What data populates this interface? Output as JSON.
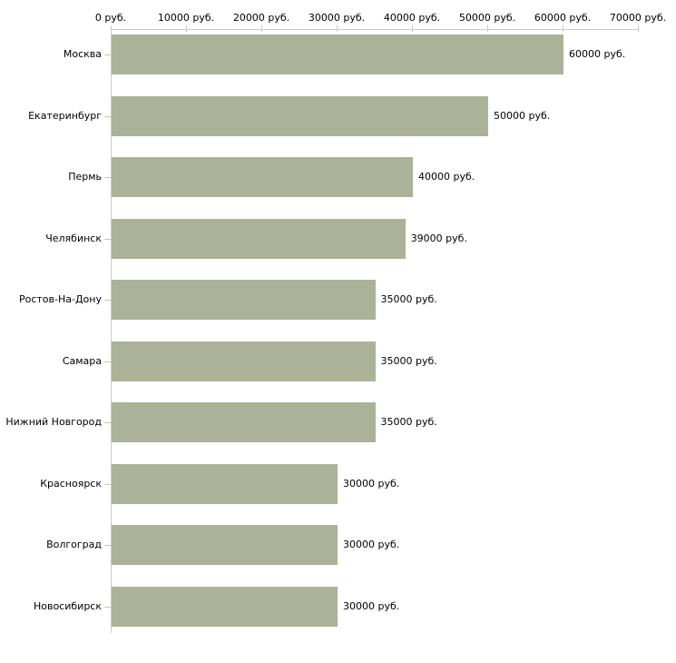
{
  "chart_data": {
    "type": "bar",
    "orientation": "horizontal",
    "title": "",
    "xlabel": "",
    "ylabel": "",
    "grid": false,
    "legend": false,
    "categories": [
      "Москва",
      "Екатеринбург",
      "Пермь",
      "Челябинск",
      "Ростов-На-Дону",
      "Самара",
      "Нижний Новгород",
      "Красноярск",
      "Волгоград",
      "Новосибирск"
    ],
    "values": [
      60000,
      50000,
      40000,
      39000,
      35000,
      35000,
      35000,
      30000,
      30000,
      30000
    ],
    "bar_labels": [
      "60000 руб.",
      "50000 руб.",
      "40000 руб.",
      "39000 руб.",
      "35000 руб.",
      "35000 руб.",
      "35000 руб.",
      "30000 руб.",
      "30000 руб.",
      "30000 руб."
    ],
    "xlim": [
      0,
      70000
    ],
    "x_ticks": [
      0,
      10000,
      20000,
      30000,
      40000,
      50000,
      60000,
      70000
    ],
    "x_tick_labels": [
      "0 руб.",
      "10000 руб.",
      "20000 руб.",
      "30000 руб.",
      "40000 руб.",
      "50000 руб.",
      "60000 руб.",
      "70000 руб."
    ],
    "colors": {
      "bar": "#abb297",
      "axis_line": "#cbcbc3",
      "tick": "#c9c9a2",
      "text": "#000000",
      "background": "#ffffff"
    }
  }
}
